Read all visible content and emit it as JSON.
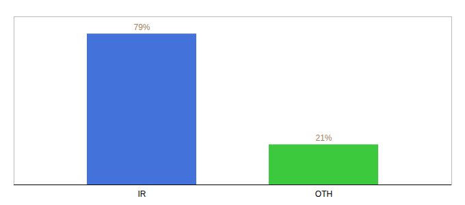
{
  "chart_data": {
    "type": "bar",
    "categories": [
      "IR",
      "OTH"
    ],
    "values": [
      79,
      21
    ],
    "value_labels": [
      "79%",
      "21%"
    ],
    "colors": [
      "#4472db",
      "#3dc93d"
    ],
    "ylim": [
      0,
      88
    ],
    "grid": false,
    "data_labels": true,
    "tick_labels": "x"
  }
}
